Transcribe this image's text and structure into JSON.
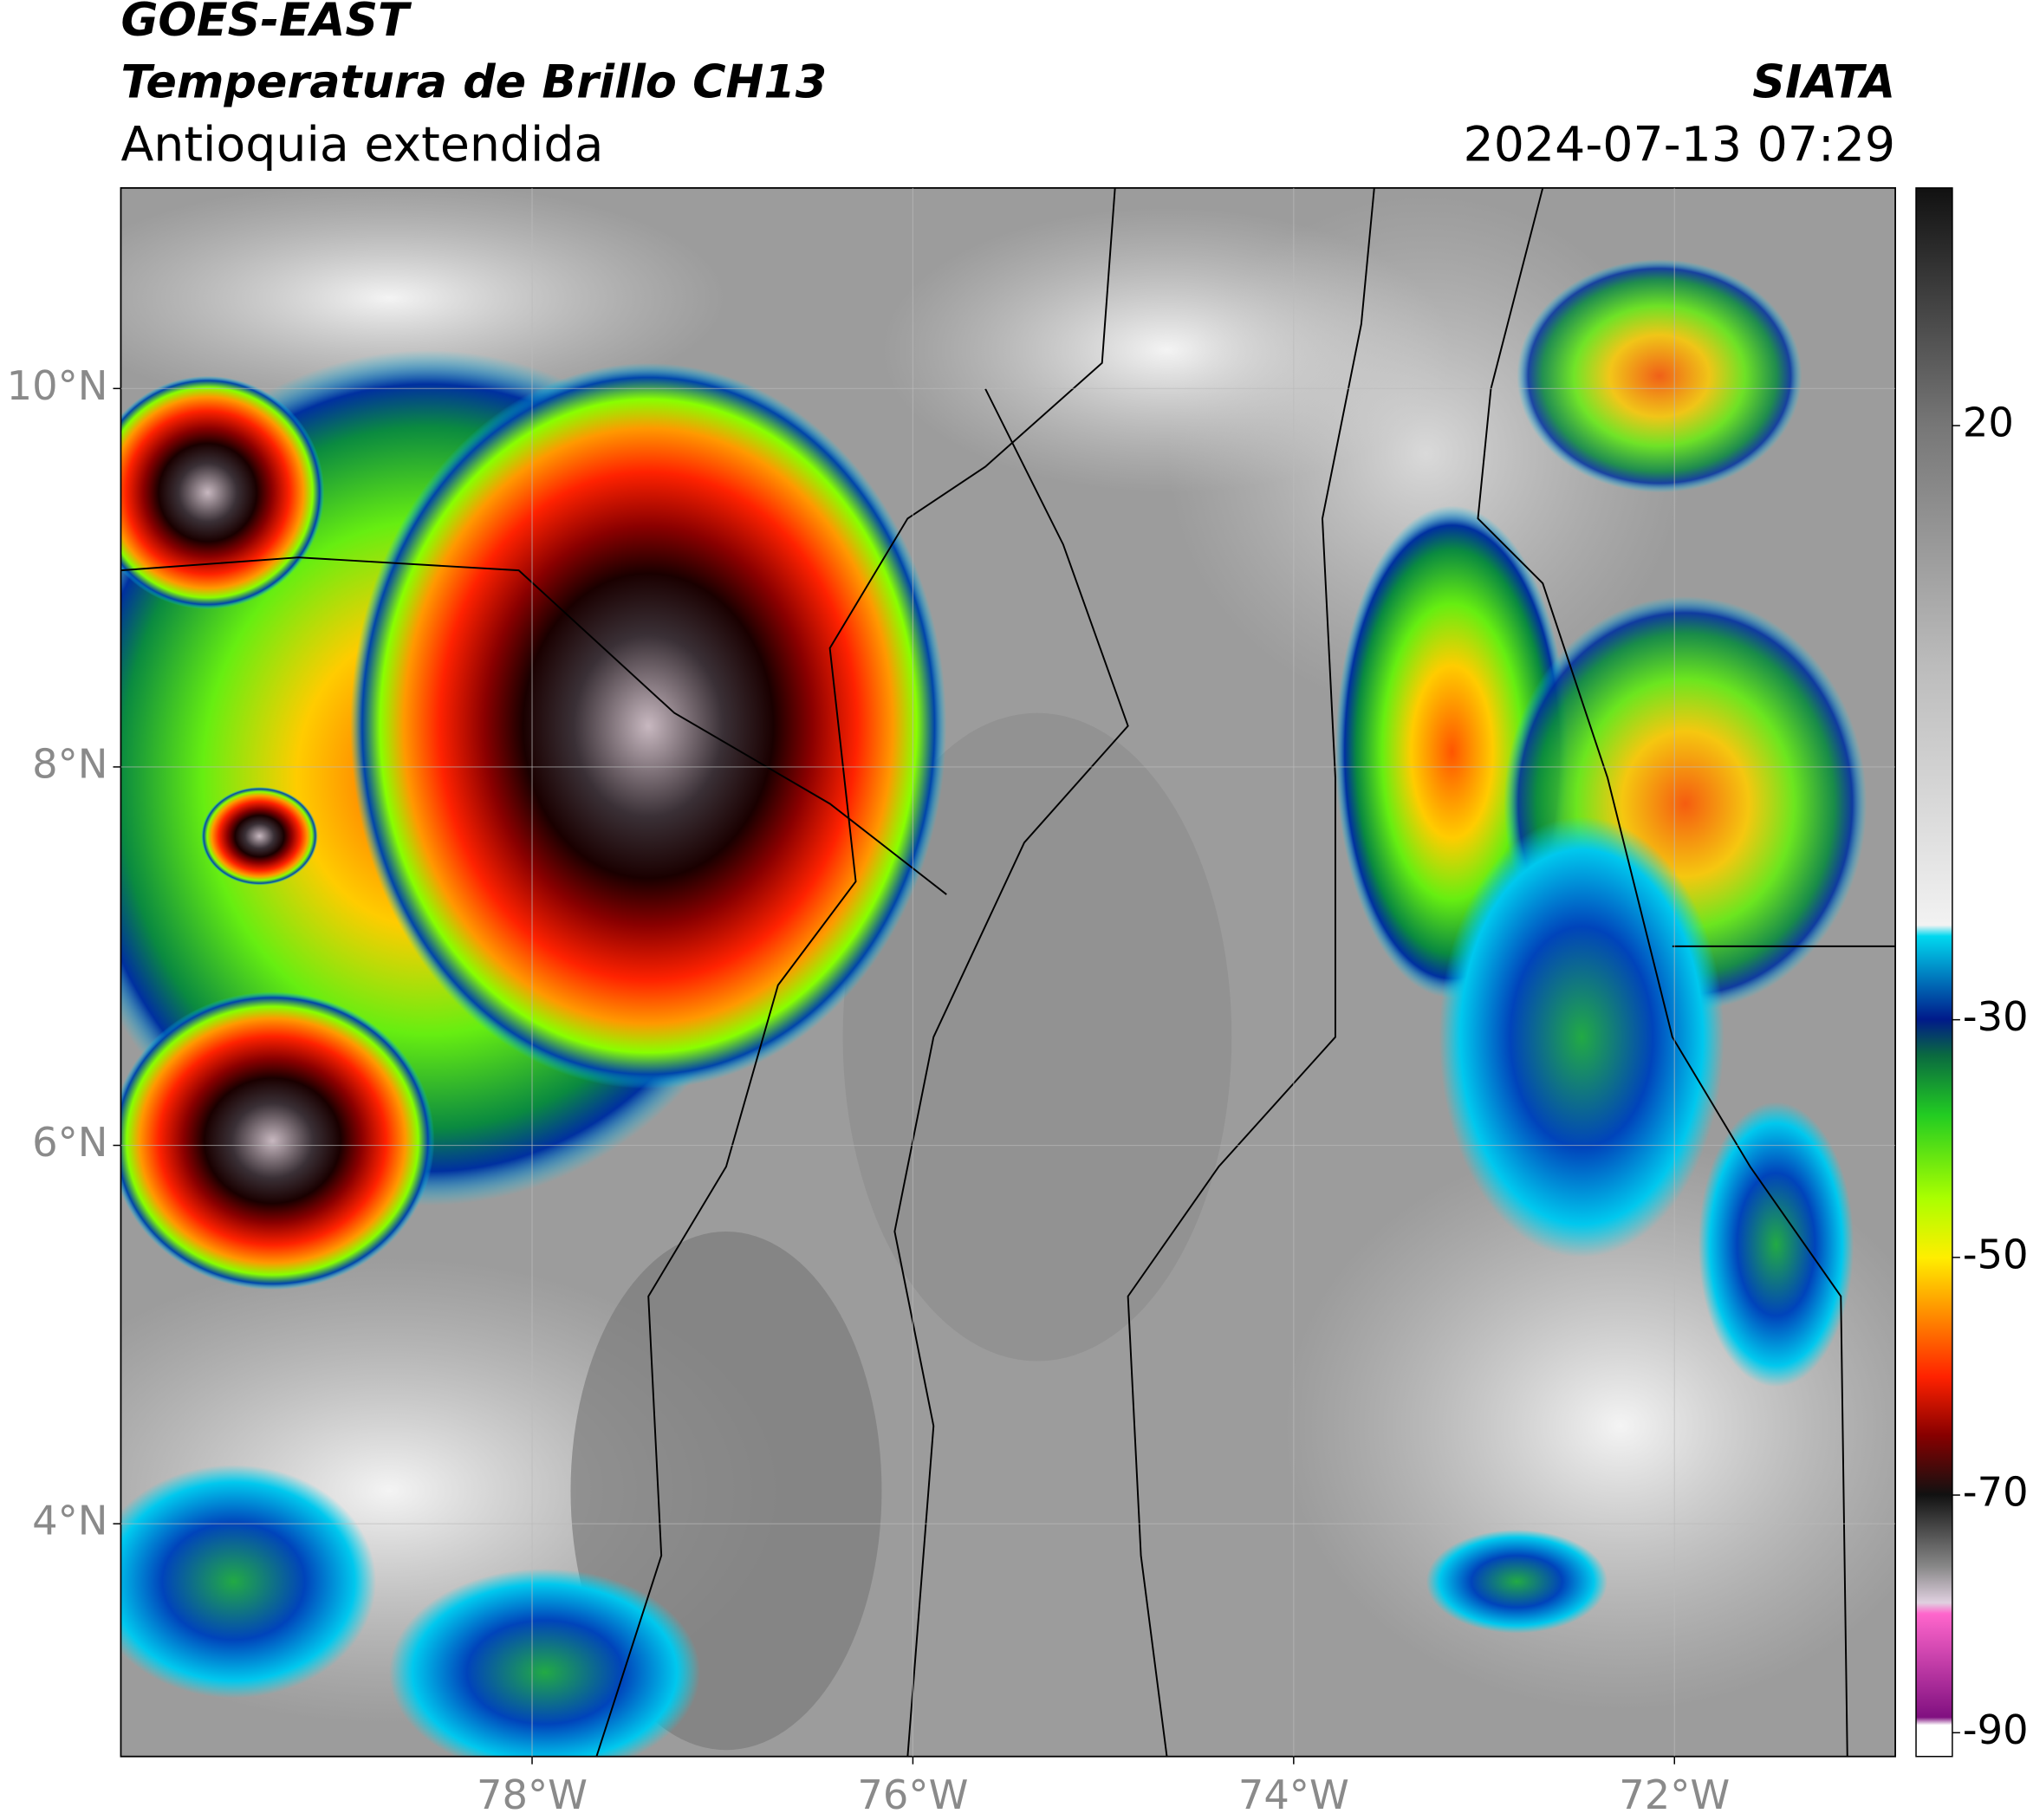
{
  "header": {
    "title": "GOES-EAST",
    "subtitle": "Temperatura de Brillo CH13",
    "region": "Antioquia extendida",
    "source": "SIATA",
    "datetime": "2024-07-13 07:29"
  },
  "chart_data": {
    "type": "map",
    "xlim": [
      -80.16,
      -70.84
    ],
    "ylim": [
      2.77,
      11.06
    ],
    "xticks": [
      {
        "value": -78,
        "label": "78°W"
      },
      {
        "value": -76,
        "label": "76°W"
      },
      {
        "value": -74,
        "label": "74°W"
      },
      {
        "value": -72,
        "label": "72°W"
      }
    ],
    "yticks": [
      {
        "value": 4,
        "label": "4°N"
      },
      {
        "value": 6,
        "label": "6°N"
      },
      {
        "value": 8,
        "label": "8°N"
      },
      {
        "value": 10,
        "label": "10°N"
      }
    ],
    "grid": true,
    "colorbar": {
      "clim": [
        -92,
        40
      ],
      "ticks": [
        20,
        -30,
        -50,
        -70,
        -90
      ]
    }
  }
}
